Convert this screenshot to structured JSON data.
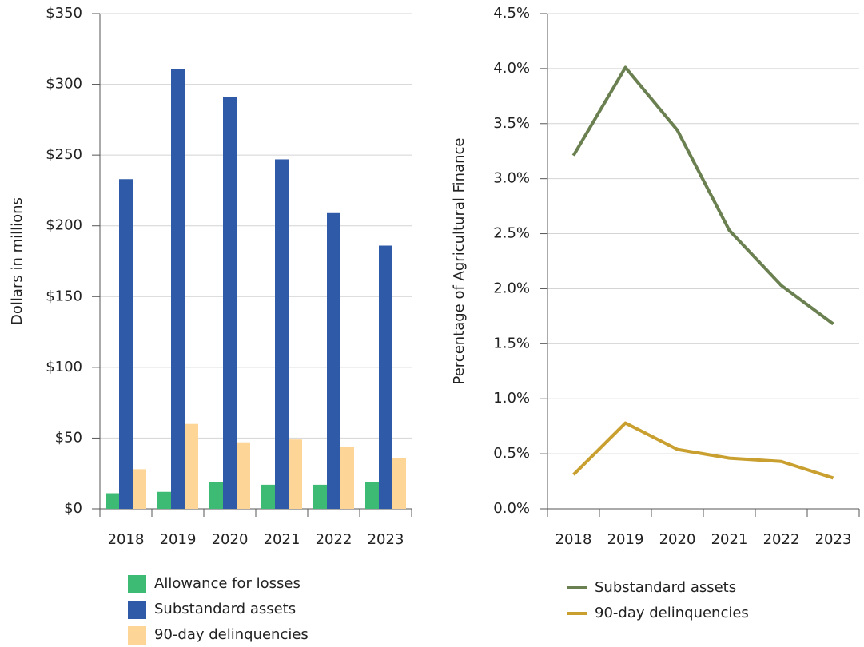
{
  "chart_data": [
    {
      "type": "bar",
      "y_label": "Dollars in millions",
      "categories": [
        "2018",
        "2019",
        "2020",
        "2021",
        "2022",
        "2023"
      ],
      "series": [
        {
          "name": "Allowance for losses",
          "color": "#3dba73",
          "values": [
            11,
            12,
            19,
            17,
            17,
            19
          ]
        },
        {
          "name": "Substandard assets",
          "color": "#2f5aa8",
          "values": [
            233,
            311,
            291,
            247,
            209,
            186
          ]
        },
        {
          "name": "90-day delinquencies",
          "color": "#fdd596",
          "values": [
            28,
            60,
            47,
            49,
            43.5,
            35.6
          ]
        }
      ],
      "ylim": [
        0,
        350
      ],
      "yticks": [
        {
          "value": 0,
          "label": "$0"
        },
        {
          "value": 50,
          "label": "$50"
        },
        {
          "value": 100,
          "label": "$100"
        },
        {
          "value": 150,
          "label": "$150"
        },
        {
          "value": 200,
          "label": "$200"
        },
        {
          "value": 250,
          "label": "$250"
        },
        {
          "value": 300,
          "label": "$300"
        },
        {
          "value": 350,
          "label": "$350"
        }
      ],
      "grid": true,
      "legend": "bottom"
    },
    {
      "type": "line",
      "y_label": "Percentage of Agricultural Finance",
      "categories": [
        "2018",
        "2019",
        "2020",
        "2021",
        "2022",
        "2023"
      ],
      "series": [
        {
          "name": "Substandard assets",
          "color": "#6b8050",
          "values": [
            3.21,
            4.01,
            3.44,
            2.53,
            2.03,
            1.68
          ]
        },
        {
          "name": "90-day delinquencies",
          "color": "#c9a02f",
          "values": [
            0.31,
            0.78,
            0.54,
            0.46,
            0.43,
            0.28
          ]
        }
      ],
      "ylim": [
        0,
        4.5
      ],
      "yticks": [
        {
          "value": 0,
          "label": "0.0%"
        },
        {
          "value": 0.5,
          "label": "0.5%"
        },
        {
          "value": 1,
          "label": "1.0%"
        },
        {
          "value": 1.5,
          "label": "1.5%"
        },
        {
          "value": 2,
          "label": "2.0%"
        },
        {
          "value": 2.5,
          "label": "2.5%"
        },
        {
          "value": 3,
          "label": "3.0%"
        },
        {
          "value": 3.5,
          "label": "3.5%"
        },
        {
          "value": 4,
          "label": "4.0%"
        },
        {
          "value": 4.5,
          "label": "4.5%"
        }
      ],
      "grid": true,
      "legend": "bottom"
    }
  ]
}
